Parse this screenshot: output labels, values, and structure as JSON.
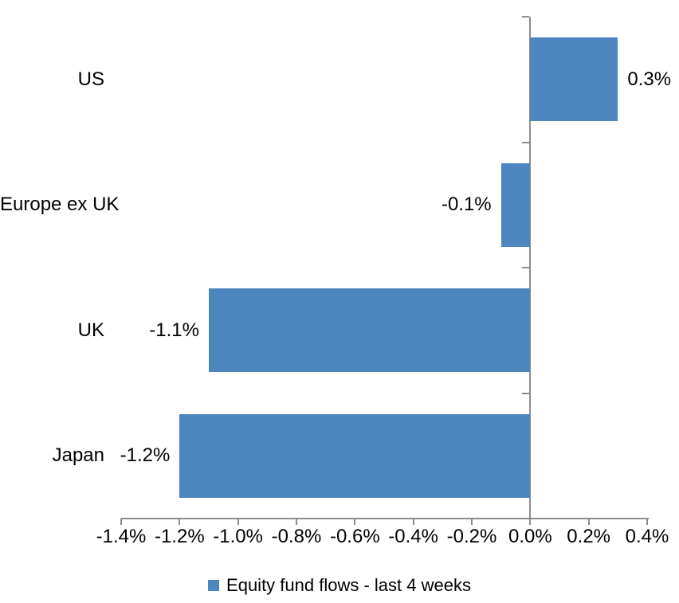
{
  "chart_data": {
    "type": "bar",
    "orientation": "horizontal",
    "title": "",
    "xlabel": "",
    "ylabel": "",
    "categories": [
      "US",
      "Europe ex UK",
      "UK",
      "Japan"
    ],
    "series": [
      {
        "name": "Equity fund flows - last 4 weeks",
        "values": [
          0.3,
          -0.1,
          -1.1,
          -1.2
        ],
        "data_labels": [
          "0.3%",
          "-0.1%",
          "-1.1%",
          "-1.2%"
        ]
      }
    ],
    "xlim": [
      -1.4,
      0.4
    ],
    "x_ticks": [
      -1.4,
      -1.2,
      -1.0,
      -0.8,
      -0.6,
      -0.4,
      -0.2,
      0.0,
      0.2,
      0.4
    ],
    "x_tick_labels": [
      "-1.4%",
      "-1.2%",
      "-1.0%",
      "-0.8%",
      "-0.6%",
      "-0.4%",
      "-0.2%",
      "0.0%",
      "0.2%",
      "0.4%"
    ],
    "grid": false,
    "legend_position": "bottom-center",
    "colors": {
      "bar": "#4d86be",
      "axis": "#8c8c8c",
      "text": "#000000",
      "background": "#ffffff"
    }
  },
  "legend": {
    "marker": "blue-square-icon",
    "label": "Equity fund flows - last 4 weeks"
  }
}
